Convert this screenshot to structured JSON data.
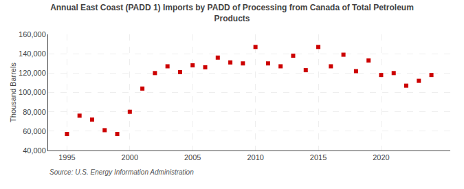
{
  "chart_data": {
    "type": "scatter",
    "title": "Annual East Coast (PADD 1) Imports by PADD of Processing from Canada of Total Petroleum\nProducts",
    "y_label": "Thousand Barrels",
    "annotations": [
      "Source: U.S. Energy Information Administration"
    ],
    "x": [
      1995,
      1996,
      1997,
      1998,
      1999,
      2000,
      2001,
      2002,
      2003,
      2004,
      2005,
      2006,
      2007,
      2008,
      2009,
      2010,
      2011,
      2012,
      2013,
      2014,
      2015,
      2016,
      2017,
      2018,
      2019,
      2020,
      2021,
      2022,
      2023,
      2024
    ],
    "values": [
      57000,
      76000,
      72000,
      61000,
      57000,
      80000,
      104000,
      120000,
      127000,
      121000,
      128000,
      126000,
      136000,
      131000,
      130000,
      147000,
      130000,
      127000,
      138000,
      123000,
      147000,
      127000,
      139000,
      122000,
      133000,
      118000,
      120000,
      107000,
      112000,
      118000
    ],
    "color": "#cc0000",
    "marker": "square",
    "xlim": [
      1993.5,
      2025.5
    ],
    "xticks": [
      1995,
      2000,
      2005,
      2010,
      2015,
      2020
    ],
    "ylim": [
      40000,
      160000
    ],
    "yticks": [
      {
        "value": 40000,
        "label": "40,000"
      },
      {
        "value": 60000,
        "label": "60,000"
      },
      {
        "value": 80000,
        "label": "80,000"
      },
      {
        "value": 100000,
        "label": "100,000"
      },
      {
        "value": 120000,
        "label": "120,000"
      },
      {
        "value": 140000,
        "label": "140,000"
      },
      {
        "value": 160000,
        "label": "160,000"
      }
    ],
    "grid": true
  }
}
